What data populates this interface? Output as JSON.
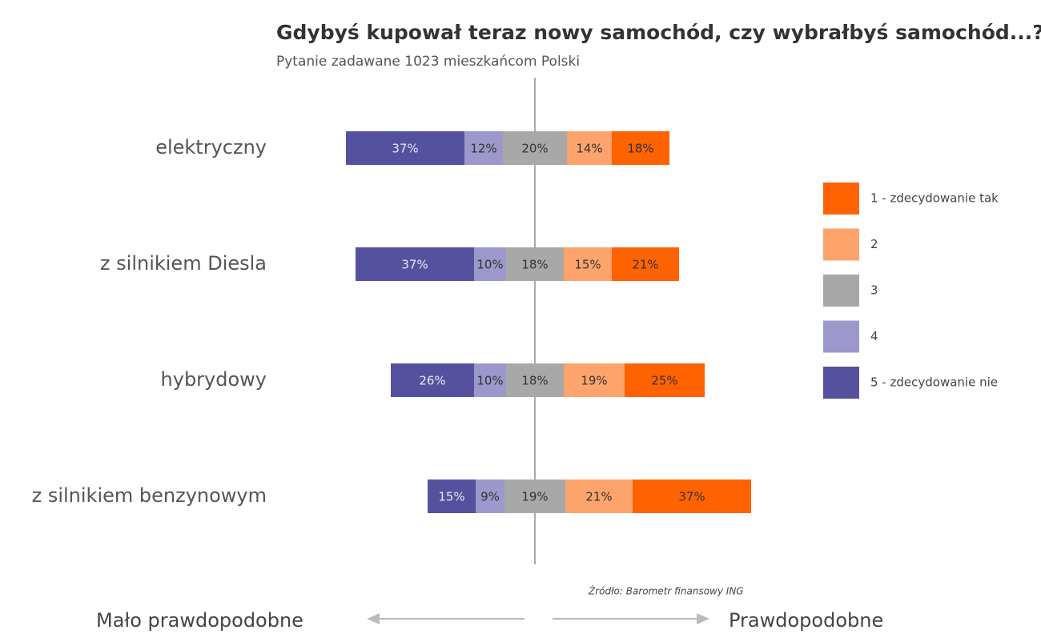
{
  "chart_data": {
    "type": "bar",
    "title": "Gdybyś kupował teraz nowy samochód, czy wybrałbyś samochód...?",
    "subtitle": "Pytanie zadawane 1023 mieszkańcom Polski",
    "source": "Źródło: Barometr finansowy ING",
    "left_label": "Mało prawdopodobne",
    "right_label": "Prawdopodobne",
    "categories": [
      "elektryczny",
      "z silnikiem Diesla",
      "hybrydowy",
      "z silnikiem benzynowym"
    ],
    "series": [
      {
        "name": "5 - zdecydowanie nie",
        "color": "#56519e",
        "values": [
          37,
          37,
          26,
          15
        ],
        "value_labels": [
          "37%",
          "37%",
          "26%",
          "15%"
        ]
      },
      {
        "name": "4",
        "color": "#9c98cc",
        "values": [
          12,
          10,
          10,
          9
        ],
        "value_labels": [
          "12%",
          "10%",
          "10%",
          "9%"
        ]
      },
      {
        "name": "3",
        "color": "#a8a8a8",
        "values": [
          20,
          18,
          18,
          19
        ],
        "value_labels": [
          "20%",
          "18%",
          "18%",
          "19%"
        ]
      },
      {
        "name": "2",
        "color": "#fca46b",
        "values": [
          14,
          15,
          19,
          21
        ],
        "value_labels": [
          "14%",
          "15%",
          "19%",
          "21%"
        ]
      },
      {
        "name": "1 - zdecydowanie tak",
        "color": "#ff6200",
        "values": [
          18,
          21,
          25,
          37
        ],
        "value_labels": [
          "18%",
          "21%",
          "25%",
          "37%"
        ]
      }
    ]
  }
}
